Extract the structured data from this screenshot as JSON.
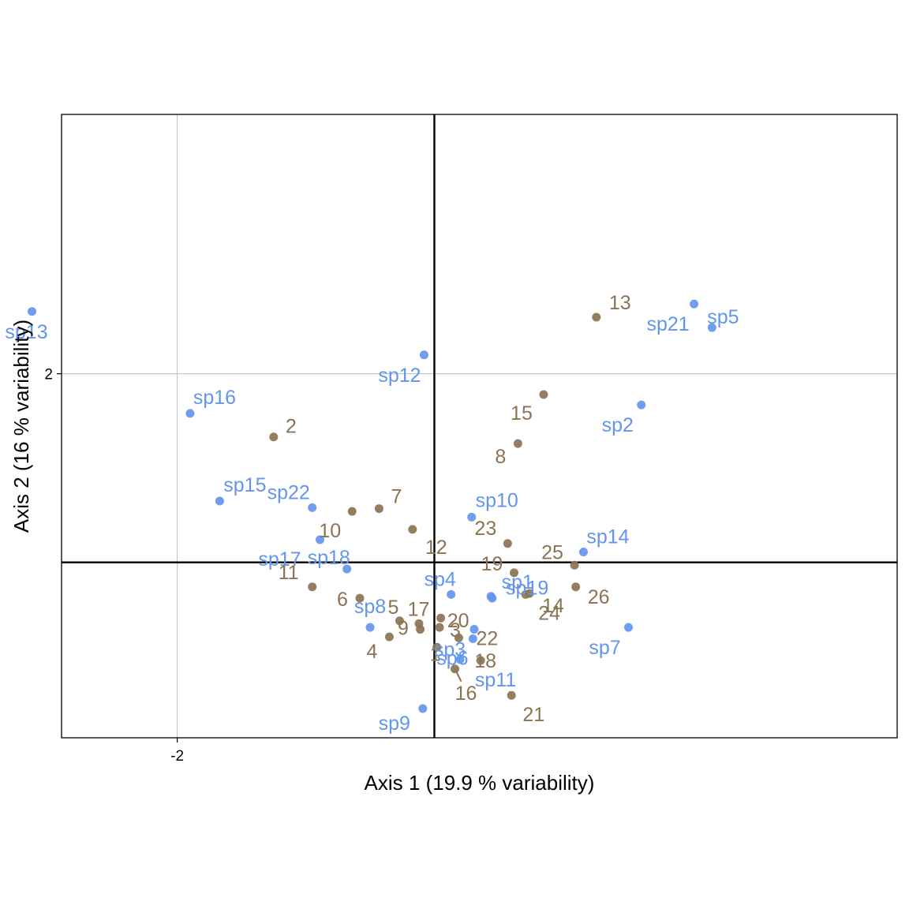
{
  "chart_data": {
    "type": "scatter",
    "title": "",
    "xlabel": "Axis 1 (19.9 % variability)",
    "ylabel": "Axis 2 (16 % variability)",
    "xlim": [
      -2.9,
      3.6
    ],
    "ylim": [
      -1.86,
      4.75
    ],
    "x_ticks": [
      {
        "value": -2,
        "label": "-2"
      }
    ],
    "y_ticks": [
      {
        "value": 2,
        "label": "2"
      }
    ],
    "grid": true,
    "origin_lines": true,
    "legend": "none",
    "colors": {
      "species": "#6495ED",
      "sites": "#8B7355"
    },
    "series": [
      {
        "name": "",
        "group": "sites",
        "color": "#8B7355",
        "points": [
          {
            "label": "1",
            "x": 0.02,
            "y": -0.9
          },
          {
            "label": "2",
            "x": -1.25,
            "y": 1.33
          },
          {
            "label": "3",
            "x": 0.04,
            "y": -0.69
          },
          {
            "label": "4",
            "x": -0.35,
            "y": -0.79
          },
          {
            "label": "5",
            "x": -0.27,
            "y": -0.62
          },
          {
            "label": "6",
            "x": -0.58,
            "y": -0.38
          },
          {
            "label": "7",
            "x": -0.43,
            "y": 0.57
          },
          {
            "label": "8",
            "x": 0.65,
            "y": 1.26
          },
          {
            "label": "9",
            "x": -0.12,
            "y": -0.65
          },
          {
            "label": "10",
            "x": -0.64,
            "y": 0.54
          },
          {
            "label": "11",
            "x": -0.95,
            "y": -0.26
          },
          {
            "label": "12",
            "x": -0.17,
            "y": 0.35
          },
          {
            "label": "13",
            "x": 1.26,
            "y": 2.6
          },
          {
            "label": "14",
            "x": 0.74,
            "y": -0.33
          },
          {
            "label": "15",
            "x": 0.85,
            "y": 1.78
          },
          {
            "label": "16",
            "x": 0.16,
            "y": -1.13
          },
          {
            "label": "17",
            "x": -0.11,
            "y": -0.71
          },
          {
            "label": "18",
            "x": 0.36,
            "y": -1.04
          },
          {
            "label": "19",
            "x": 0.62,
            "y": -0.11
          },
          {
            "label": "20",
            "x": 0.05,
            "y": -0.59
          },
          {
            "label": "21",
            "x": 0.6,
            "y": -1.41
          },
          {
            "label": "22",
            "x": 0.19,
            "y": -0.8
          },
          {
            "label": "23",
            "x": 0.57,
            "y": 0.2
          },
          {
            "label": "24",
            "x": 0.71,
            "y": -0.34
          },
          {
            "label": "25",
            "x": 1.09,
            "y": -0.03
          },
          {
            "label": "26",
            "x": 1.1,
            "y": -0.26
          }
        ]
      },
      {
        "name": "",
        "group": "species",
        "color": "#6495ED",
        "points": [
          {
            "label": "sp1",
            "x": 0.45,
            "y": -0.38
          },
          {
            "label": "sp2",
            "x": 1.61,
            "y": 1.67
          },
          {
            "label": "sp3",
            "x": 0.31,
            "y": -0.71
          },
          {
            "label": "sp4",
            "x": 0.13,
            "y": -0.34
          },
          {
            "label": "sp5",
            "x": 2.16,
            "y": 2.49
          },
          {
            "label": "sp6",
            "x": 0.3,
            "y": -0.81
          },
          {
            "label": "sp7",
            "x": 1.51,
            "y": -0.69
          },
          {
            "label": "sp8",
            "x": -0.5,
            "y": -0.69
          },
          {
            "label": "sp9",
            "x": -0.09,
            "y": -1.55
          },
          {
            "label": "sp10",
            "x": 0.29,
            "y": 0.48
          },
          {
            "label": "sp11",
            "x": 0.2,
            "y": -1.03
          },
          {
            "label": "sp12",
            "x": -0.08,
            "y": 2.2
          },
          {
            "label": "sp13",
            "x": -3.13,
            "y": 2.66
          },
          {
            "label": "sp14",
            "x": 1.16,
            "y": 0.11
          },
          {
            "label": "sp15",
            "x": -1.67,
            "y": 0.65
          },
          {
            "label": "sp16",
            "x": -1.9,
            "y": 1.58
          },
          {
            "label": "sp17",
            "x": -0.89,
            "y": 0.24
          },
          {
            "label": "sp18",
            "x": -0.68,
            "y": -0.07
          },
          {
            "label": "sp19",
            "x": 0.44,
            "y": -0.36
          },
          {
            "label": "sp21",
            "x": 2.02,
            "y": 2.74
          },
          {
            "label": "sp22",
            "x": -0.95,
            "y": 0.58
          }
        ]
      }
    ]
  }
}
